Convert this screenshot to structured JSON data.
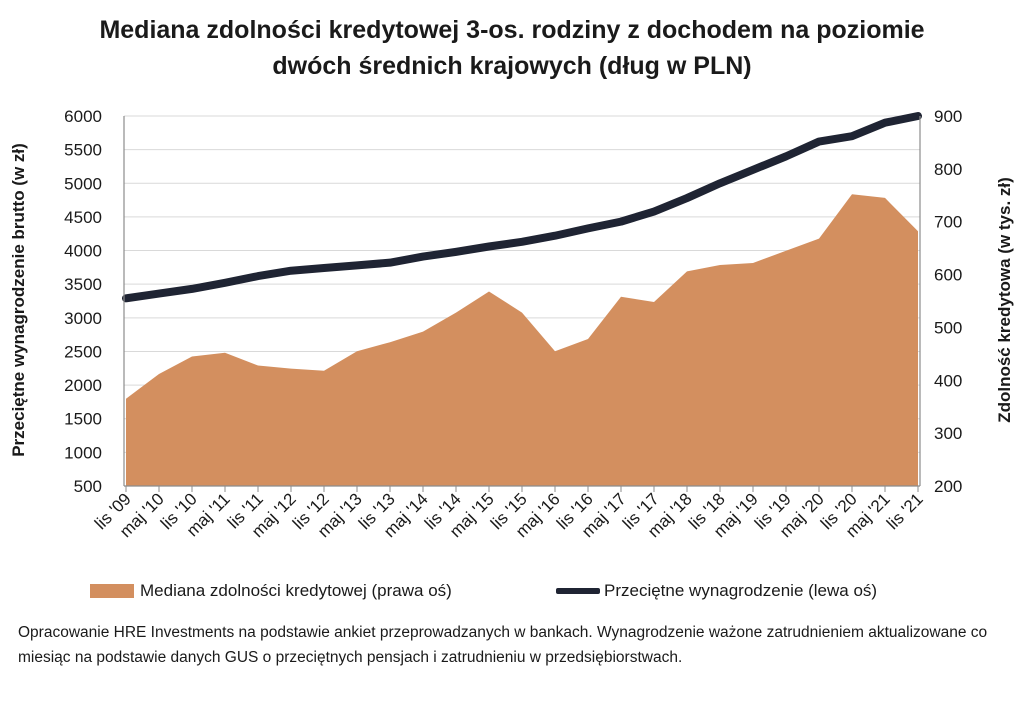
{
  "title": {
    "line1": "Mediana zdolności kredytowej 3-os. rodziny z dochodem na poziomie",
    "line2": "dwóch średnich krajowych (dług w PLN)"
  },
  "legend": {
    "area_label": "Mediana zdolności kredytowej (prawa oś)",
    "line_label": "Przeciętne wynagrodzenie (lewa oś)"
  },
  "source_note": "Opracowanie HRE Investments na podstawie ankiet przeprowadzanych w bankach. Wynagrodzenie ważone zatrudnieniem aktualizowane co miesiąc na podstawie danych GUS o przeciętnych pensjach i zatrudnieniu w przedsiębiorstwach.",
  "colors": {
    "area": "#D38F5F",
    "line": "#1F2433",
    "text": "#1a1a1a"
  },
  "chart_data": {
    "type": "line+area",
    "title": "Mediana zdolności kredytowej 3-os. rodziny z dochodem na poziomie dwóch średnich krajowych (dług w PLN)",
    "x_labels": [
      "lis '09",
      "maj '10",
      "lis '10",
      "maj '11",
      "lis '11",
      "maj '12",
      "lis '12",
      "maj '13",
      "lis '13",
      "maj '14",
      "lis '14",
      "maj '15",
      "lis '15",
      "maj '16",
      "lis '16",
      "maj '17",
      "lis '17",
      "maj '18",
      "lis '18",
      "maj '19",
      "lis '19",
      "maj '20",
      "lis '20",
      "maj '21",
      "lis '21"
    ],
    "y_left": {
      "label": "Przeciętne wynagrodzenie brutto (w zł)",
      "ticks": [
        500,
        1000,
        1500,
        2000,
        2500,
        3000,
        3500,
        4000,
        4500,
        5000,
        5500,
        6000
      ],
      "range": [
        500,
        6000
      ]
    },
    "y_right": {
      "label": "Zdolność kredytowa (w tys. zł)",
      "ticks": [
        200,
        300,
        400,
        500,
        600,
        700,
        800,
        900
      ],
      "range": [
        200,
        900
      ]
    },
    "series": [
      {
        "name": "Mediana zdolności kredytowej (prawa oś)",
        "type": "area",
        "axis": "right",
        "x": [
          "lis '09",
          "maj '10",
          "lis '10",
          "maj '11",
          "lis '11",
          "maj '12",
          "lis '12",
          "maj '13",
          "lis '13",
          "maj '14",
          "lis '14",
          "maj '15",
          "lis '15",
          "maj '16",
          "lis '16",
          "maj '17",
          "lis '17",
          "maj '18",
          "lis '18",
          "maj '19",
          "lis '19",
          "maj '20",
          "lis '20",
          "maj '21",
          "lis '21"
        ],
        "values": [
          365,
          412,
          445,
          452,
          428,
          422,
          418,
          455,
          472,
          492,
          528,
          568,
          528,
          455,
          478,
          558,
          548,
          606,
          618,
          622,
          645,
          668,
          752,
          745,
          682
        ]
      },
      {
        "name": "Przeciętne wynagrodzenie (lewa oś)",
        "type": "line",
        "axis": "left",
        "x": [
          "lis '09",
          "maj '10",
          "lis '10",
          "maj '11",
          "lis '11",
          "maj '12",
          "lis '12",
          "maj '13",
          "lis '13",
          "maj '14",
          "lis '14",
          "maj '15",
          "lis '15",
          "maj '16",
          "lis '16",
          "maj '17",
          "lis '17",
          "maj '18",
          "lis '18",
          "maj '19",
          "lis '19",
          "maj '20",
          "lis '20",
          "maj '21",
          "lis '21"
        ],
        "values": [
          3290,
          3360,
          3430,
          3520,
          3620,
          3700,
          3740,
          3780,
          3820,
          3910,
          3980,
          4060,
          4130,
          4220,
          4330,
          4430,
          4580,
          4780,
          5000,
          5200,
          5400,
          5620,
          5700,
          5900,
          6000
        ]
      }
    ],
    "grid": "horizontal",
    "legend_position": "bottom"
  }
}
